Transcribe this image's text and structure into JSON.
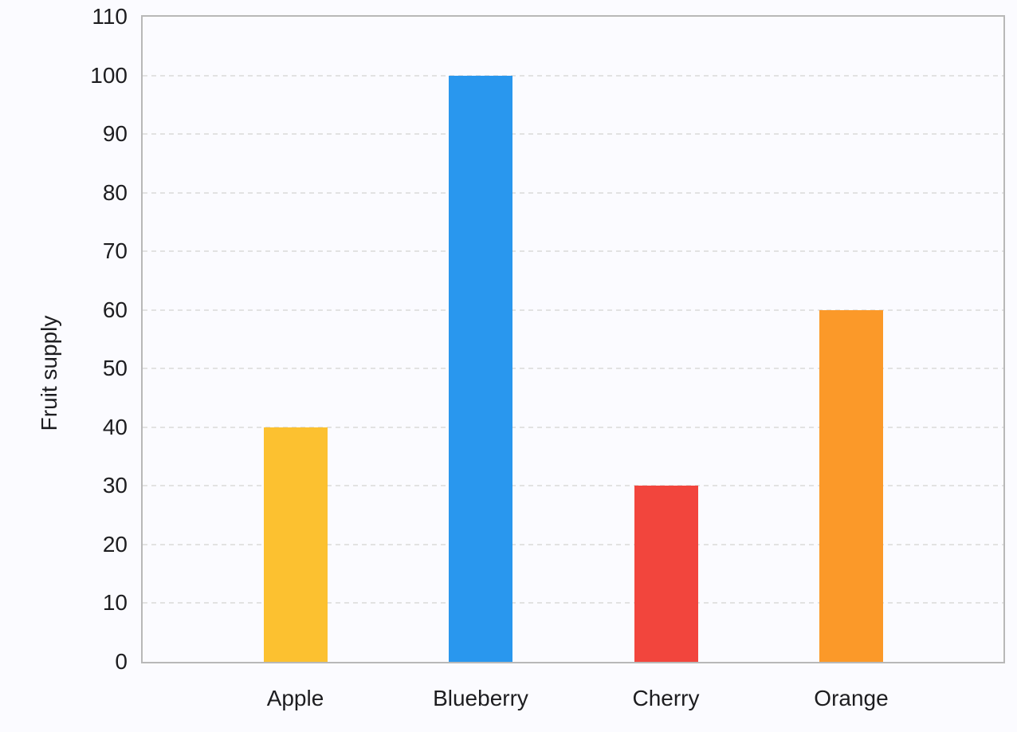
{
  "chart_data": {
    "type": "bar",
    "title": "",
    "categories": [
      "Apple",
      "Blueberry",
      "Cherry",
      "Orange"
    ],
    "values": [
      40,
      100,
      30,
      60
    ],
    "bar_colors": [
      "#fcc130",
      "#2997ee",
      "#f2453d",
      "#fb9929"
    ],
    "xlabel": "",
    "ylabel": "Fruit supply",
    "ylim": [
      0,
      110
    ],
    "yticks": [
      0,
      10,
      20,
      30,
      40,
      50,
      60,
      70,
      80,
      90,
      100,
      110
    ],
    "grid": {
      "horizontal": true,
      "style": "dashed",
      "color": "#e2e2e2"
    },
    "legend_position": "none",
    "plot_border_color": "#b8b8b8",
    "background_color": "#fbfbff",
    "text_color": "#1d1d20"
  }
}
